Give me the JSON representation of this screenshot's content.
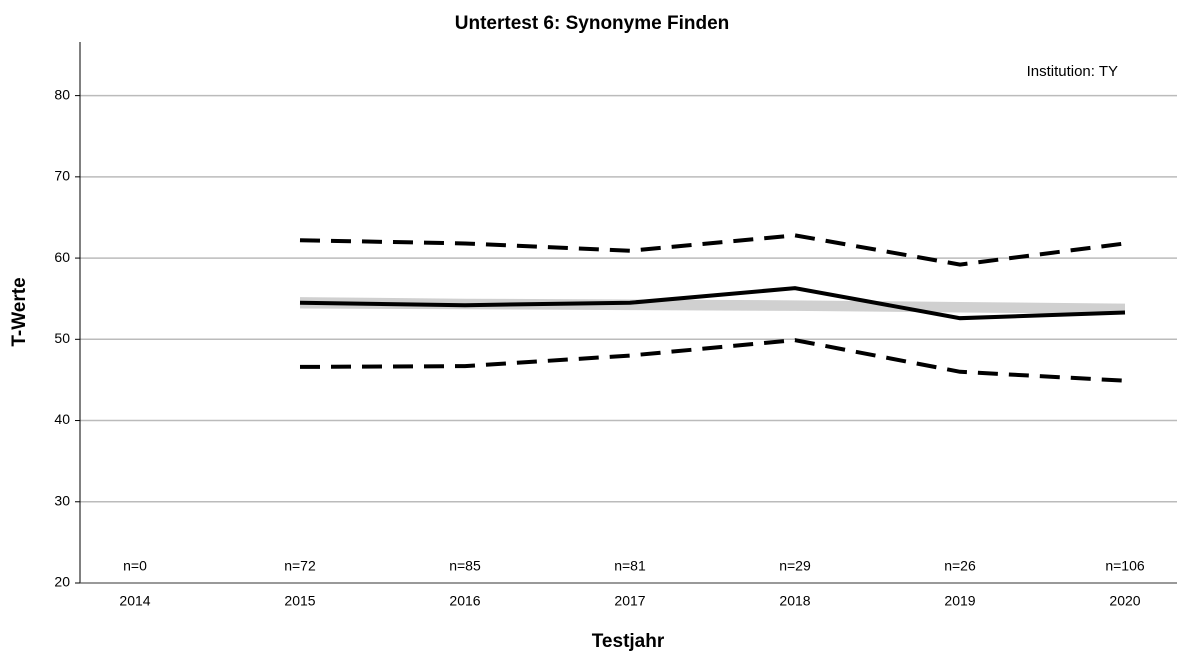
{
  "chart_data": {
    "type": "line",
    "title": "Untertest 6: Synonyme Finden",
    "xlabel": "Testjahr",
    "ylabel": "T-Werte",
    "annotation": "Institution: TY",
    "categories": [
      "2014",
      "2015",
      "2016",
      "2017",
      "2018",
      "2019",
      "2020"
    ],
    "counts": [
      "n=0",
      "n=72",
      "n=85",
      "n=81",
      "n=29",
      "n=26",
      "n=106"
    ],
    "band": {
      "color": "#d0d0d0",
      "upper": [
        null,
        55.2,
        55.0,
        54.9,
        54.8,
        54.6,
        54.4
      ],
      "lower": [
        null,
        53.8,
        53.7,
        53.6,
        53.5,
        53.3,
        53.1
      ]
    },
    "series": [
      {
        "color": "#000000",
        "style": "solid",
        "values": [
          null,
          54.5,
          54.2,
          54.5,
          56.3,
          52.6,
          53.3
        ]
      },
      {
        "color": "#000000",
        "style": "dashed",
        "values": [
          null,
          62.2,
          61.8,
          60.9,
          62.8,
          59.2,
          61.8
        ]
      },
      {
        "color": "#000000",
        "style": "dashed",
        "values": [
          null,
          46.6,
          46.7,
          48.0,
          49.9,
          46.0,
          44.9
        ]
      }
    ],
    "ylim": [
      20,
      86.6
    ],
    "yticks": [
      20,
      30,
      40,
      50,
      60,
      70,
      80
    ],
    "grid": true
  }
}
